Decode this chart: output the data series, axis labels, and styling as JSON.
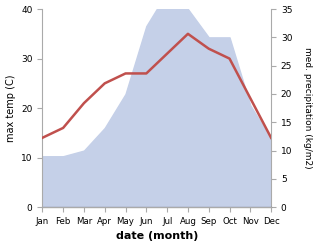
{
  "months": [
    "Jan",
    "Feb",
    "Mar",
    "Apr",
    "May",
    "Jun",
    "Jul",
    "Aug",
    "Sep",
    "Oct",
    "Nov",
    "Dec"
  ],
  "temp": [
    14,
    16,
    21,
    25,
    27,
    27,
    31,
    35,
    32,
    30,
    22,
    14
  ],
  "precip": [
    9,
    9,
    10,
    14,
    20,
    32,
    38,
    35,
    30,
    30,
    18,
    12
  ],
  "temp_color": "#c0504d",
  "precip_color_fill": "#c5d0e8",
  "temp_ylim": [
    0,
    40
  ],
  "precip_ylim": [
    0,
    35
  ],
  "xlabel": "date (month)",
  "ylabel_left": "max temp (C)",
  "ylabel_right": "med. precipitation (kg/m2)",
  "bg_color": "#ffffff",
  "spine_color": "#aaaaaa",
  "yticks_left": [
    0,
    10,
    20,
    30,
    40
  ],
  "yticks_right": [
    0,
    5,
    10,
    15,
    20,
    25,
    30,
    35
  ]
}
